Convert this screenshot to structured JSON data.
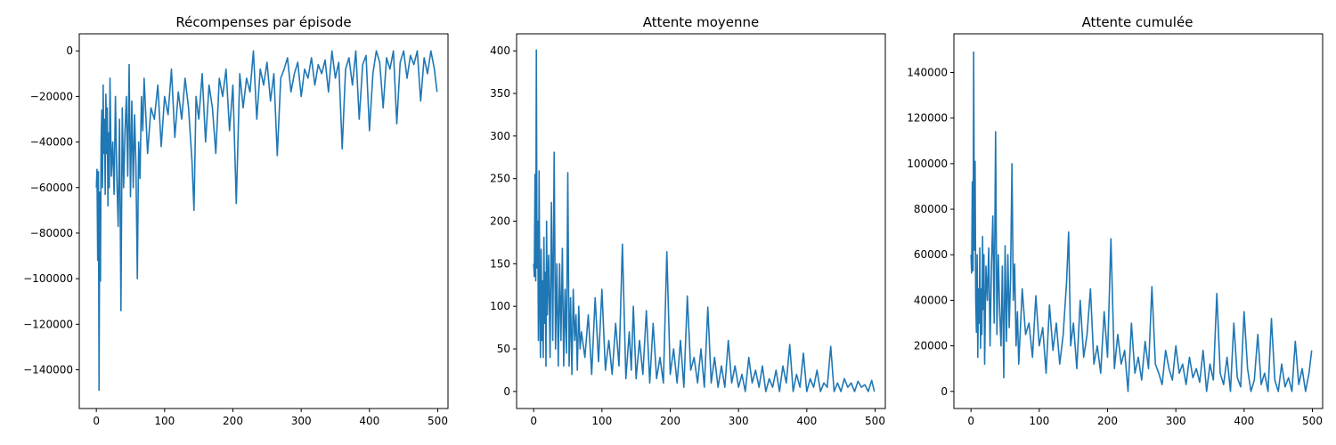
{
  "chart_data": [
    {
      "type": "line",
      "title": "Récompenses par épisode",
      "xlabel": "",
      "ylabel": "",
      "xlim": [
        -25,
        515
      ],
      "ylim": [
        -157000,
        7500
      ],
      "xticks": [
        0,
        100,
        200,
        300,
        400,
        500
      ],
      "yticks": [
        -140000,
        -120000,
        -100000,
        -80000,
        -60000,
        -40000,
        -20000,
        0
      ],
      "grid": false,
      "color": "#1f77b4",
      "series": [
        {
          "x": [
            0,
            1,
            2,
            3,
            4,
            5,
            6,
            7,
            8,
            9,
            10,
            11,
            12,
            13,
            14,
            15,
            16,
            17,
            18,
            19,
            20,
            22,
            24,
            26,
            28,
            30,
            32,
            34,
            36,
            38,
            40,
            42,
            44,
            46,
            48,
            50,
            52,
            54,
            56,
            58,
            60,
            62,
            64,
            66,
            68,
            70,
            75,
            80,
            85,
            90,
            95,
            100,
            105,
            110,
            115,
            120,
            125,
            130,
            135,
            140,
            143,
            146,
            150,
            155,
            160,
            165,
            170,
            175,
            180,
            185,
            190,
            195,
            200,
            205,
            210,
            215,
            220,
            225,
            230,
            235,
            240,
            245,
            250,
            255,
            260,
            265,
            270,
            275,
            280,
            285,
            290,
            295,
            300,
            305,
            310,
            315,
            320,
            325,
            330,
            335,
            340,
            345,
            350,
            355,
            360,
            365,
            370,
            375,
            380,
            385,
            390,
            395,
            400,
            405,
            410,
            415,
            420,
            425,
            430,
            435,
            440,
            445,
            450,
            455,
            460,
            465,
            470,
            475,
            480,
            485,
            490,
            495,
            499
          ],
          "y": [
            -60000,
            -52000,
            -92000,
            -53000,
            -149000,
            -62000,
            -101000,
            -40000,
            -26000,
            -60000,
            -15000,
            -45000,
            -30000,
            -63000,
            -19000,
            -45000,
            -25000,
            -68000,
            -36000,
            -60000,
            -12000,
            -55000,
            -40000,
            -63000,
            -20000,
            -56000,
            -77000,
            -30000,
            -114000,
            -25000,
            -60000,
            -35000,
            -20000,
            -55000,
            -6000,
            -64000,
            -22000,
            -60000,
            -28000,
            -50000,
            -100000,
            -40000,
            -56000,
            -20000,
            -35000,
            -12000,
            -45000,
            -25000,
            -30000,
            -15000,
            -42000,
            -20000,
            -28000,
            -8000,
            -38000,
            -18000,
            -30000,
            -12000,
            -25000,
            -48000,
            -70000,
            -20000,
            -30000,
            -10000,
            -40000,
            -15000,
            -25000,
            -45000,
            -12000,
            -20000,
            -8000,
            -35000,
            -15000,
            -67000,
            -10000,
            -25000,
            -12000,
            -18000,
            0,
            -30000,
            -8000,
            -15000,
            -5000,
            -22000,
            -10000,
            -46000,
            -12000,
            -8000,
            -3000,
            -18000,
            -10000,
            -5000,
            -20000,
            -8000,
            -12000,
            -3000,
            -15000,
            -6000,
            -10000,
            -4000,
            -18000,
            0,
            -12000,
            -5000,
            -43000,
            -8000,
            -3000,
            -15000,
            0,
            -30000,
            -6000,
            -2000,
            -35000,
            -10000,
            0,
            -5000,
            -25000,
            -3000,
            -8000,
            0,
            -32000,
            -5000,
            0,
            -12000,
            -2000,
            -6000,
            0,
            -22000,
            -3000,
            -10000,
            0,
            -8000,
            -18000
          ]
        }
      ]
    },
    {
      "type": "line",
      "title": "Attente moyenne",
      "xlabel": "",
      "ylabel": "",
      "xlim": [
        -25,
        515
      ],
      "ylim": [
        -20,
        420
      ],
      "xticks": [
        0,
        100,
        200,
        300,
        400,
        500
      ],
      "yticks": [
        0,
        50,
        100,
        150,
        200,
        250,
        300,
        350,
        400
      ],
      "grid": false,
      "color": "#1f77b4",
      "series": [
        {
          "x": [
            0,
            1,
            2,
            3,
            4,
            5,
            6,
            7,
            8,
            9,
            10,
            11,
            12,
            13,
            14,
            15,
            16,
            17,
            18,
            19,
            20,
            22,
            24,
            26,
            28,
            30,
            32,
            34,
            36,
            38,
            40,
            42,
            44,
            46,
            48,
            50,
            52,
            54,
            56,
            58,
            60,
            62,
            64,
            66,
            68,
            70,
            75,
            80,
            85,
            90,
            95,
            100,
            105,
            110,
            115,
            120,
            125,
            130,
            135,
            140,
            143,
            146,
            150,
            155,
            160,
            165,
            170,
            175,
            180,
            185,
            190,
            195,
            200,
            205,
            210,
            215,
            220,
            225,
            230,
            235,
            240,
            245,
            250,
            255,
            260,
            265,
            270,
            275,
            280,
            285,
            290,
            295,
            300,
            305,
            310,
            315,
            320,
            325,
            330,
            335,
            340,
            345,
            350,
            355,
            360,
            365,
            370,
            375,
            380,
            385,
            390,
            395,
            400,
            405,
            410,
            415,
            420,
            425,
            430,
            435,
            440,
            445,
            450,
            455,
            460,
            465,
            470,
            475,
            480,
            485,
            490,
            495,
            499
          ],
          "y": [
            150,
            135,
            255,
            130,
            401,
            145,
            200,
            60,
            259,
            100,
            40,
            167,
            60,
            130,
            40,
            181,
            80,
            140,
            30,
            200,
            90,
            160,
            40,
            222,
            60,
            281,
            50,
            150,
            30,
            150,
            60,
            168,
            30,
            120,
            45,
            257,
            30,
            110,
            20,
            120,
            60,
            90,
            25,
            100,
            50,
            70,
            40,
            90,
            20,
            110,
            35,
            120,
            25,
            60,
            20,
            80,
            30,
            173,
            15,
            70,
            25,
            100,
            15,
            60,
            20,
            95,
            10,
            80,
            15,
            40,
            10,
            164,
            20,
            50,
            10,
            60,
            5,
            112,
            25,
            40,
            10,
            50,
            5,
            99,
            10,
            40,
            5,
            30,
            5,
            60,
            10,
            30,
            5,
            20,
            0,
            40,
            10,
            25,
            5,
            30,
            0,
            15,
            5,
            25,
            0,
            30,
            10,
            55,
            0,
            20,
            5,
            45,
            0,
            15,
            5,
            25,
            0,
            10,
            5,
            53,
            0,
            10,
            0,
            15,
            5,
            10,
            0,
            12,
            5,
            8,
            0,
            13,
            0
          ]
        }
      ]
    },
    {
      "type": "line",
      "title": "Attente cumulée",
      "xlabel": "",
      "ylabel": "",
      "xlim": [
        -25,
        515
      ],
      "ylim": [
        -7500,
        157000
      ],
      "xticks": [
        0,
        100,
        200,
        300,
        400,
        500
      ],
      "yticks": [
        0,
        20000,
        40000,
        60000,
        80000,
        100000,
        120000,
        140000
      ],
      "grid": false,
      "color": "#1f77b4",
      "series": [
        {
          "x": [
            0,
            1,
            2,
            3,
            4,
            5,
            6,
            7,
            8,
            9,
            10,
            11,
            12,
            13,
            14,
            15,
            16,
            17,
            18,
            19,
            20,
            22,
            24,
            26,
            28,
            30,
            32,
            34,
            36,
            38,
            40,
            42,
            44,
            46,
            48,
            50,
            52,
            54,
            56,
            58,
            60,
            62,
            64,
            66,
            68,
            70,
            75,
            80,
            85,
            90,
            95,
            100,
            105,
            110,
            115,
            120,
            125,
            130,
            135,
            140,
            143,
            146,
            150,
            155,
            160,
            165,
            170,
            175,
            180,
            185,
            190,
            195,
            200,
            205,
            210,
            215,
            220,
            225,
            230,
            235,
            240,
            245,
            250,
            255,
            260,
            265,
            270,
            275,
            280,
            285,
            290,
            295,
            300,
            305,
            310,
            315,
            320,
            325,
            330,
            335,
            340,
            345,
            350,
            355,
            360,
            365,
            370,
            375,
            380,
            385,
            390,
            395,
            400,
            405,
            410,
            415,
            420,
            425,
            430,
            435,
            440,
            445,
            450,
            455,
            460,
            465,
            470,
            475,
            480,
            485,
            490,
            495,
            499
          ],
          "y": [
            60000,
            52000,
            92000,
            53000,
            149000,
            62000,
            101000,
            40000,
            26000,
            60000,
            15000,
            45000,
            30000,
            63000,
            19000,
            45000,
            25000,
            68000,
            36000,
            60000,
            12000,
            55000,
            40000,
            63000,
            20000,
            56000,
            77000,
            30000,
            114000,
            25000,
            60000,
            35000,
            20000,
            55000,
            6000,
            64000,
            22000,
            60000,
            28000,
            50000,
            100000,
            40000,
            56000,
            20000,
            35000,
            12000,
            45000,
            25000,
            30000,
            15000,
            42000,
            20000,
            28000,
            8000,
            38000,
            18000,
            30000,
            12000,
            25000,
            48000,
            70000,
            20000,
            30000,
            10000,
            40000,
            15000,
            25000,
            45000,
            12000,
            20000,
            8000,
            35000,
            15000,
            67000,
            10000,
            25000,
            12000,
            18000,
            0,
            30000,
            8000,
            15000,
            5000,
            22000,
            10000,
            46000,
            12000,
            8000,
            3000,
            18000,
            10000,
            5000,
            20000,
            8000,
            12000,
            3000,
            15000,
            6000,
            10000,
            4000,
            18000,
            0,
            12000,
            5000,
            43000,
            8000,
            3000,
            15000,
            0,
            30000,
            6000,
            2000,
            35000,
            10000,
            0,
            5000,
            25000,
            3000,
            8000,
            0,
            32000,
            5000,
            0,
            12000,
            2000,
            6000,
            0,
            22000,
            3000,
            10000,
            0,
            8000,
            18000
          ]
        }
      ]
    }
  ]
}
